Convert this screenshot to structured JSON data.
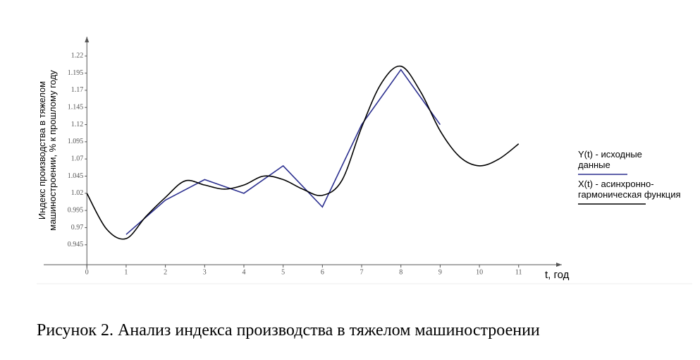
{
  "chart_data": {
    "type": "line",
    "caption": "Рисунок 2. Анализ индекса производства в тяжелом машиностроении",
    "y_label": "Индекс производства в тяжелом машиностроении, % к прошлому году",
    "x_label": "t, год",
    "xlim": [
      -1.1,
      12.1
    ],
    "xticks": [
      0,
      1,
      2,
      3,
      4,
      5,
      6,
      7,
      8,
      9,
      10,
      11
    ],
    "ylim": [
      0.916,
      1.248
    ],
    "yticks": [
      0.945,
      0.97,
      0.995,
      1.02,
      1.045,
      1.07,
      1.095,
      1.12,
      1.145,
      1.17,
      1.195,
      1.22
    ],
    "series": [
      {
        "name": "Y(t) - исходные данные",
        "color": "#2b2f8f",
        "smooth": false,
        "x": [
          1,
          2,
          3,
          4,
          5,
          6,
          7,
          8,
          9
        ],
        "values": [
          0.96,
          1.01,
          1.04,
          1.02,
          1.06,
          1.0,
          1.12,
          1.2,
          1.12
        ]
      },
      {
        "name": "X(t) - асинхронно-гармоническая функция",
        "color": "#000000",
        "smooth": true,
        "x": [
          0,
          0.5,
          1,
          1.5,
          2,
          2.5,
          3,
          3.5,
          4,
          4.5,
          5,
          5.5,
          6,
          6.5,
          7,
          7.5,
          8,
          8.5,
          9,
          9.5,
          10,
          10.5,
          11
        ],
        "values": [
          1.02,
          0.968,
          0.954,
          0.986,
          1.014,
          1.038,
          1.032,
          1.026,
          1.032,
          1.045,
          1.04,
          1.026,
          1.017,
          1.039,
          1.116,
          1.18,
          1.205,
          1.168,
          1.111,
          1.073,
          1.06,
          1.07,
          1.092
        ]
      }
    ]
  }
}
